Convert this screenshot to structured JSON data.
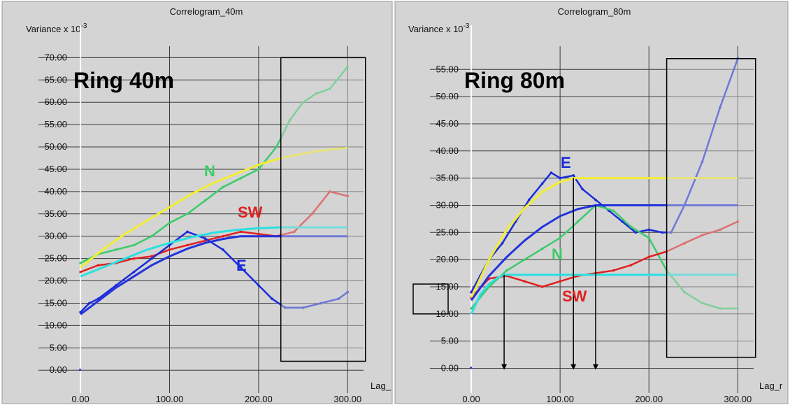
{
  "charts": [
    {
      "title": "Correlogram_40m",
      "ylabel": "Variance x 10",
      "ylabel_exp": "-3",
      "xlabel": "Lag_",
      "ring_label": "Ring 40m"
    },
    {
      "title": "Correlogram_80m",
      "ylabel": "Variance x 10",
      "ylabel_exp": "-3",
      "xlabel": "Lag_r",
      "ring_label": "Ring 80m"
    }
  ],
  "colors": {
    "N": "#3ccb6a",
    "SW": "#e02020",
    "E": "#1a2bd8",
    "model_yellow": "#f2ee32",
    "model_cyan": "#2ae0e0",
    "model_blue": "#2233dd",
    "panel_bg": "#d4d4d4",
    "grid": "#3a3a3a"
  },
  "chart_data": [
    {
      "type": "line",
      "title": "Correlogram_40m",
      "xlabel": "Lag_",
      "ylabel": "Variance x 10^-3",
      "xlim": [
        -15,
        310
      ],
      "ylim": [
        -2,
        71
      ],
      "x_ticks": [
        "0.00",
        "100.00",
        "200.00",
        "300.00"
      ],
      "y_ticks": [
        "0.00",
        "5.00",
        "10.00",
        "15.00",
        "20.00",
        "25.00",
        "30.00",
        "35.00",
        "40.00",
        "45.00",
        "50.00",
        "55.00",
        "60.00",
        "65.00",
        "70.00"
      ],
      "grid": true,
      "annotations": [
        "Ring 40m",
        "N",
        "SW",
        "E"
      ],
      "highlight_box": {
        "x_from": 225,
        "x_to": 320,
        "y_from": 2,
        "y_to": 70
      },
      "series": [
        {
          "name": "N",
          "color": "#3ccb6a",
          "x": [
            0,
            20,
            40,
            60,
            80,
            100,
            120,
            140,
            160,
            180,
            200,
            220,
            235,
            250,
            265,
            280,
            300
          ],
          "y": [
            24,
            26,
            27,
            28,
            30,
            33,
            35,
            38,
            41,
            43,
            45,
            50,
            56,
            60,
            62,
            63,
            68
          ]
        },
        {
          "name": "SW",
          "color": "#e02020",
          "x": [
            0,
            20,
            40,
            60,
            80,
            100,
            120,
            140,
            160,
            180,
            200,
            220,
            240,
            260,
            280,
            300
          ],
          "y": [
            22,
            23.5,
            24,
            25,
            25.5,
            27,
            28,
            29,
            30,
            31,
            30.5,
            30,
            31,
            35,
            40,
            39
          ]
        },
        {
          "name": "E",
          "color": "#1a2bd8",
          "x": [
            0,
            10,
            20,
            40,
            60,
            80,
            100,
            120,
            140,
            160,
            180,
            200,
            215,
            230,
            250,
            270,
            290,
            300
          ],
          "y": [
            13,
            15,
            16,
            19,
            22,
            25,
            28,
            31,
            29.5,
            27,
            23,
            19,
            16,
            14,
            14,
            15,
            16,
            17.5
          ]
        },
        {
          "name": "",
          "color": "#f2ee32",
          "x": [
            0,
            25,
            50,
            75,
            100,
            125,
            150,
            175,
            200,
            225,
            250,
            275,
            300
          ],
          "y": [
            23,
            27,
            30.5,
            33.5,
            36.5,
            39.5,
            42,
            44,
            46,
            47.5,
            48.5,
            49.3,
            49.8
          ]
        },
        {
          "name": "",
          "color": "#2ae0e0",
          "x": [
            0,
            25,
            50,
            75,
            100,
            125,
            150,
            175,
            200,
            225,
            250,
            300
          ],
          "y": [
            21,
            23,
            25,
            27,
            28.5,
            29.8,
            30.8,
            31.4,
            31.8,
            32,
            32,
            32
          ]
        },
        {
          "name": "",
          "color": "#2233dd",
          "x": [
            0,
            20,
            40,
            60,
            80,
            100,
            120,
            140,
            160,
            180,
            200,
            250,
            300
          ],
          "y": [
            12.5,
            15.5,
            18.5,
            21,
            23.5,
            25.5,
            27.2,
            28.5,
            29.4,
            30,
            30,
            30,
            30
          ]
        }
      ]
    },
    {
      "type": "line",
      "title": "Correlogram_80m",
      "xlabel": "Lag_r",
      "ylabel": "Variance x 10^-3",
      "xlim": [
        -15,
        310
      ],
      "ylim": [
        -2,
        58
      ],
      "x_ticks": [
        "0.00",
        "100.00",
        "200.00",
        "300.00"
      ],
      "y_ticks": [
        "0.00",
        "5.00",
        "10.00",
        "15.00",
        "20.00",
        "25.00",
        "30.00",
        "35.00",
        "40.00",
        "45.00",
        "50.00",
        "55.00"
      ],
      "grid": true,
      "annotations": [
        "Ring 80m",
        "E",
        "N",
        "SW"
      ],
      "highlight_box": {
        "x_from": 220,
        "x_to": 320,
        "y_from": 2,
        "y_to": 57
      },
      "left_box": {
        "y_from": 10,
        "y_to": 15.5
      },
      "arrows_x": [
        37,
        115,
        140
      ],
      "series": [
        {
          "name": "E",
          "color": "#1a2bd8",
          "x": [
            0,
            10,
            20,
            35,
            50,
            65,
            80,
            90,
            100,
            115,
            125,
            140,
            155,
            170,
            185,
            200,
            215,
            225,
            240,
            260,
            280,
            300
          ],
          "y": [
            14,
            17,
            20,
            23,
            27,
            31,
            34,
            36,
            35,
            35.5,
            33,
            31,
            29,
            27,
            25,
            25.5,
            25,
            25,
            30,
            38,
            48,
            57
          ]
        },
        {
          "name": "N",
          "color": "#3ccb6a",
          "x": [
            0,
            20,
            40,
            60,
            80,
            100,
            120,
            140,
            160,
            180,
            200,
            220,
            240,
            260,
            280,
            300
          ],
          "y": [
            11,
            15,
            18,
            20,
            22,
            24,
            27,
            30,
            29,
            26,
            24,
            18,
            14,
            12,
            11,
            11
          ]
        },
        {
          "name": "SW",
          "color": "#e02020",
          "x": [
            0,
            20,
            40,
            60,
            80,
            100,
            120,
            140,
            160,
            180,
            200,
            220,
            240,
            260,
            280,
            300
          ],
          "y": [
            13,
            16.5,
            17,
            16,
            15,
            16,
            17,
            17.5,
            18,
            19,
            20.5,
            21.5,
            23,
            24.5,
            25.5,
            27
          ]
        },
        {
          "name": "",
          "color": "#f2ee32",
          "x": [
            0,
            20,
            40,
            60,
            80,
            100,
            115,
            150,
            200,
            250,
            300
          ],
          "y": [
            13,
            20,
            25.5,
            29.5,
            32.5,
            34.3,
            35,
            35,
            35,
            35,
            35
          ]
        },
        {
          "name": "",
          "color": "#2ae0e0",
          "x": [
            0,
            10,
            20,
            30,
            37,
            100,
            200,
            300
          ],
          "y": [
            10,
            13.5,
            15.5,
            16.7,
            17.2,
            17.2,
            17.2,
            17.2
          ]
        },
        {
          "name": "",
          "color": "#2233dd",
          "x": [
            0,
            20,
            40,
            60,
            80,
            100,
            120,
            140,
            200,
            250,
            300
          ],
          "y": [
            12.5,
            17,
            20.5,
            23.5,
            26,
            28,
            29.3,
            30,
            30,
            30,
            30
          ]
        }
      ]
    }
  ]
}
